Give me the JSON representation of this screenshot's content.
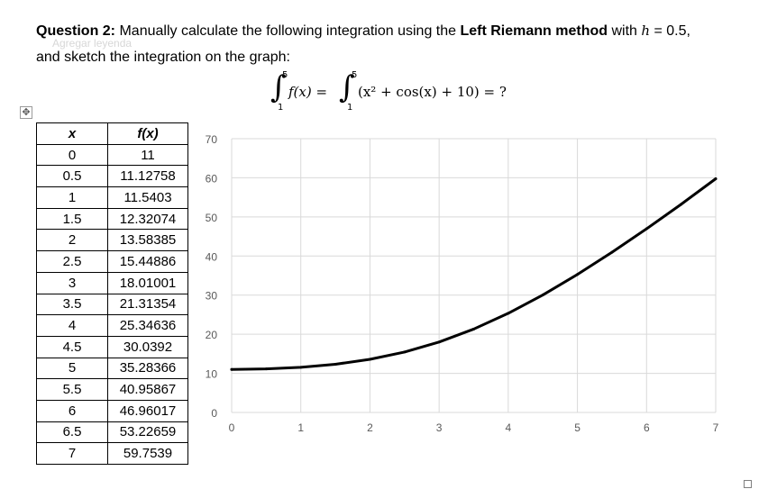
{
  "question": {
    "label": "Question 2:",
    "text1": " Manually calculate the following integration using the ",
    "method": "Left Riemann method",
    "text2": " with ",
    "var_h": "h",
    "eq_value": " = 0.5,",
    "line2": "and sketch the integration on the graph:",
    "ghost_text": "Agregar leyenda"
  },
  "equation": {
    "upper1": "5",
    "lower1": "1",
    "fx": "f(x) =",
    "upper2": "5",
    "lower2": "1",
    "expr": "(x² + cos(x) + 10) = ?"
  },
  "table": {
    "header_x": "x",
    "header_f": "f(x)",
    "rows": [
      [
        "0",
        "11"
      ],
      [
        "0.5",
        "11.12758"
      ],
      [
        "1",
        "11.5403"
      ],
      [
        "1.5",
        "12.32074"
      ],
      [
        "2",
        "13.58385"
      ],
      [
        "2.5",
        "15.44886"
      ],
      [
        "3",
        "18.01001"
      ],
      [
        "3.5",
        "21.31354"
      ],
      [
        "4",
        "25.34636"
      ],
      [
        "4.5",
        "30.0392"
      ],
      [
        "5",
        "35.28366"
      ],
      [
        "5.5",
        "40.95867"
      ],
      [
        "6",
        "46.96017"
      ],
      [
        "6.5",
        "53.22659"
      ],
      [
        "7",
        "59.7539"
      ]
    ]
  },
  "chart_data": {
    "type": "line",
    "title": "",
    "xlabel": "",
    "ylabel": "",
    "xlim": [
      0,
      7
    ],
    "ylim": [
      0,
      70
    ],
    "xticks": [
      "0",
      "1",
      "2",
      "3",
      "4",
      "5",
      "6",
      "7"
    ],
    "yticks": [
      "0",
      "10",
      "20",
      "30",
      "40",
      "50",
      "60",
      "70"
    ],
    "grid": true,
    "legend": "none",
    "line_color": "#000000",
    "grid_color": "#d9d9d9",
    "series": [
      {
        "x": [
          0,
          0.5,
          1,
          1.5,
          2,
          2.5,
          3,
          3.5,
          4,
          4.5,
          5,
          5.5,
          6,
          6.5,
          7
        ],
        "values": [
          11,
          11.12758,
          11.5403,
          12.32074,
          13.58385,
          15.44886,
          18.01001,
          21.31354,
          25.34636,
          30.0392,
          35.28366,
          40.95867,
          46.96017,
          53.22659,
          59.7539
        ]
      }
    ]
  }
}
